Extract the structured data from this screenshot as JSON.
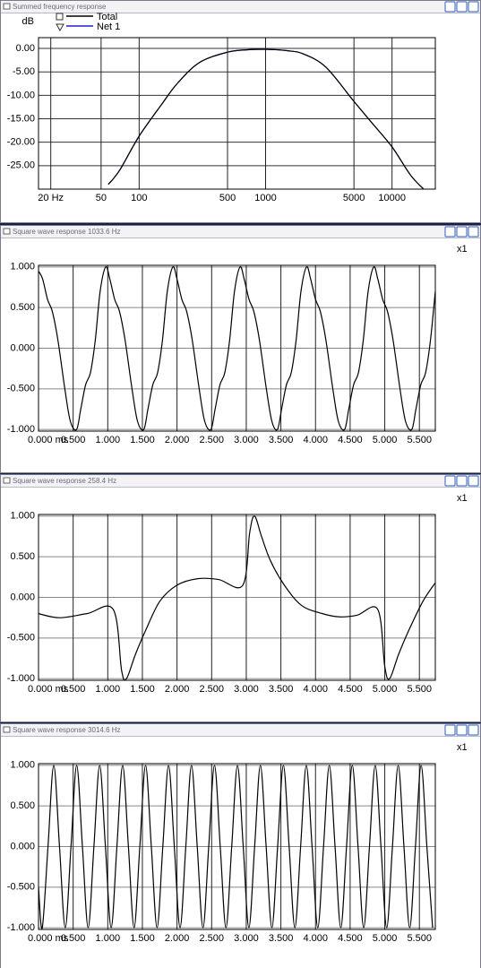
{
  "chart_data": [
    {
      "type": "line",
      "title": "Summed frequency response",
      "y_label": "dB",
      "xlog": true,
      "x": [
        57,
        70,
        100,
        150,
        200,
        300,
        500,
        700,
        1000,
        1500,
        2000,
        3000,
        5000,
        7000,
        10000,
        14000,
        17800
      ],
      "series": [
        {
          "name": "Net 1",
          "color": "#2020c0",
          "values": [
            -29,
            -26,
            -18.7,
            -12,
            -7.5,
            -3,
            -0.8,
            -0.3,
            -0.2,
            -0.5,
            -1.2,
            -4,
            -11.3,
            -16,
            -21,
            -27,
            -30
          ]
        },
        {
          "name": "Total",
          "color": "#000000",
          "values": [
            -29,
            -26,
            -18.7,
            -12,
            -7.5,
            -3,
            -0.8,
            -0.3,
            -0.2,
            -0.5,
            -1.2,
            -4,
            -11.3,
            -16,
            -21,
            -27,
            -30
          ]
        }
      ],
      "xlim": [
        16,
        22000
      ],
      "ylim": [
        -30,
        2.3
      ],
      "xticks": [
        {
          "value": 20,
          "label": "20 Hz"
        },
        50,
        100,
        500,
        1000,
        5000,
        10000
      ],
      "yticks": [
        {
          "value": 0,
          "label": "0.00"
        },
        {
          "value": -5,
          "label": "-5.00"
        },
        {
          "value": -10,
          "label": "-10.00"
        },
        {
          "value": -15,
          "label": "-15.00"
        },
        {
          "value": -20,
          "label": "-20.00"
        },
        {
          "value": -25,
          "label": "-25.00"
        }
      ]
    },
    {
      "type": "line",
      "title": "Square wave response 1033.6 Hz",
      "annotation": "x1",
      "x": [
        0,
        0.06,
        0.13,
        0.2,
        0.28,
        0.38,
        0.46,
        0.55,
        0.61,
        0.68,
        0.75,
        0.82,
        0.89,
        0.97,
        1.03,
        1.1,
        1.17,
        1.25,
        1.35,
        1.43,
        1.52,
        1.58,
        1.65,
        1.72,
        1.79,
        1.86,
        1.94,
        2.0,
        2.07,
        2.14,
        2.22,
        2.32,
        2.4,
        2.49,
        2.55,
        2.62,
        2.69,
        2.76,
        2.83,
        2.91,
        2.97,
        3.04,
        3.11,
        3.19,
        3.29,
        3.37,
        3.45,
        3.51,
        3.58,
        3.65,
        3.72,
        3.79,
        3.87,
        3.93,
        4.0,
        4.07,
        4.15,
        4.25,
        4.33,
        4.42,
        4.48,
        4.55,
        4.62,
        4.69,
        4.76,
        4.84,
        4.9,
        4.97,
        5.04,
        5.12,
        5.22,
        5.3,
        5.39,
        5.45,
        5.52,
        5.59,
        5.66,
        5.73
      ],
      "series": [
        {
          "color": "#000000",
          "values": [
            0.95,
            0.85,
            0.6,
            0.45,
            0.1,
            -0.5,
            -0.9,
            -1,
            -0.75,
            -0.45,
            -0.3,
            0.1,
            0.7,
            1,
            0.85,
            0.6,
            0.45,
            0.1,
            -0.5,
            -0.9,
            -1,
            -0.75,
            -0.45,
            -0.3,
            0.1,
            0.7,
            1,
            0.85,
            0.6,
            0.45,
            0.1,
            -0.5,
            -0.9,
            -1,
            -0.75,
            -0.45,
            -0.3,
            0.1,
            0.7,
            1,
            0.85,
            0.6,
            0.45,
            0.1,
            -0.5,
            -0.9,
            -1,
            -0.75,
            -0.45,
            -0.3,
            0.1,
            0.7,
            1,
            0.85,
            0.6,
            0.45,
            0.1,
            -0.5,
            -0.9,
            -1,
            -0.75,
            -0.45,
            -0.3,
            0.1,
            0.7,
            1,
            0.85,
            0.6,
            0.45,
            0.1,
            -0.5,
            -0.9,
            -1,
            -0.75,
            -0.45,
            -0.3,
            0.1,
            0.7
          ]
        }
      ],
      "xlim": [
        0,
        5.73
      ],
      "ylim": [
        -1.02,
        1.02
      ],
      "xticks": [
        {
          "value": 0,
          "label": "0.000 ms"
        },
        {
          "value": 0.5,
          "label": "0.500"
        },
        {
          "value": 1,
          "label": "1.000"
        },
        {
          "value": 1.5,
          "label": "1.500"
        },
        {
          "value": 2,
          "label": "2.000"
        },
        {
          "value": 2.5,
          "label": "2.500"
        },
        {
          "value": 3,
          "label": "3.000"
        },
        {
          "value": 3.5,
          "label": "3.500"
        },
        {
          "value": 4,
          "label": "4.000"
        },
        {
          "value": 4.5,
          "label": "4.500"
        },
        {
          "value": 5,
          "label": "5.000"
        },
        {
          "value": 5.5,
          "label": "5.500"
        }
      ],
      "yticks": [
        {
          "value": 1,
          "label": "1.000"
        },
        {
          "value": 0.5,
          "label": "0.500"
        },
        {
          "value": 0,
          "label": "0.000"
        },
        {
          "value": -0.5,
          "label": "-0.500"
        },
        {
          "value": -1,
          "label": "-1.000"
        }
      ]
    },
    {
      "type": "line",
      "title": "Square wave response 258.4 Hz",
      "annotation": "x1",
      "x": [
        0,
        0.3,
        0.7,
        1.08,
        1.2,
        1.27,
        1.4,
        1.55,
        1.75,
        2.0,
        2.3,
        2.6,
        2.95,
        3.05,
        3.12,
        3.22,
        3.35,
        3.55,
        3.8,
        4.1,
        4.35,
        4.6,
        4.9,
        5.0,
        5.07,
        5.2,
        5.35,
        5.55,
        5.73
      ],
      "series": [
        {
          "color": "#000000",
          "values": [
            -0.2,
            -0.25,
            -0.2,
            -0.15,
            -0.9,
            -1,
            -0.7,
            -0.4,
            -0.05,
            0.15,
            0.23,
            0.22,
            0.15,
            0.8,
            1,
            0.75,
            0.45,
            0.15,
            -0.1,
            -0.2,
            -0.24,
            -0.22,
            -0.15,
            -0.85,
            -1,
            -0.7,
            -0.4,
            -0.05,
            0.18
          ]
        }
      ],
      "xlim": [
        0,
        5.73
      ],
      "ylim": [
        -1.02,
        1.02
      ],
      "xticks": [
        {
          "value": 0,
          "label": "0.000 ms"
        },
        {
          "value": 0.5,
          "label": "0.500"
        },
        {
          "value": 1,
          "label": "1.000"
        },
        {
          "value": 1.5,
          "label": "1.500"
        },
        {
          "value": 2,
          "label": "2.000"
        },
        {
          "value": 2.5,
          "label": "2.500"
        },
        {
          "value": 3,
          "label": "3.000"
        },
        {
          "value": 3.5,
          "label": "3.500"
        },
        {
          "value": 4,
          "label": "4.000"
        },
        {
          "value": 4.5,
          "label": "4.500"
        },
        {
          "value": 5,
          "label": "5.000"
        },
        {
          "value": 5.5,
          "label": "5.500"
        }
      ],
      "yticks": [
        {
          "value": 1,
          "label": "1.000"
        },
        {
          "value": 0.5,
          "label": "0.500"
        },
        {
          "value": 0,
          "label": "0.000"
        },
        {
          "value": -0.5,
          "label": "-0.500"
        },
        {
          "value": -1,
          "label": "-1.000"
        }
      ]
    },
    {
      "type": "line",
      "title": "Square wave response 3014.6 Hz",
      "annotation": "x1",
      "x": [
        0,
        0.054,
        0.137,
        0.22,
        0.303,
        0.386,
        0.469,
        0.551,
        0.634,
        0.717,
        0.8,
        0.883,
        0.966,
        1.049,
        1.132,
        1.215,
        1.298,
        1.38,
        1.463,
        1.546,
        1.629,
        1.712,
        1.795,
        1.878,
        1.961,
        2.044,
        2.127,
        2.209,
        2.292,
        2.375,
        2.458,
        2.541,
        2.624,
        2.707,
        2.79,
        2.873,
        2.956,
        3.038,
        3.121,
        3.204,
        3.287,
        3.37,
        3.453,
        3.536,
        3.619,
        3.702,
        3.785,
        3.867,
        3.95,
        4.033,
        4.116,
        4.199,
        4.282,
        4.365,
        4.448,
        4.531,
        4.614,
        4.696,
        4.779,
        4.862,
        4.945,
        5.028,
        5.111,
        5.194,
        5.277,
        5.36,
        5.443,
        5.525,
        5.608,
        5.691
      ],
      "series": [
        {
          "color": "#000000",
          "values": [
            -0.5,
            -1,
            0,
            1,
            0,
            -1,
            0,
            1,
            0,
            -1,
            0,
            1,
            0,
            -1,
            0,
            1,
            0,
            -1,
            0,
            1,
            0,
            -1,
            0,
            1,
            0,
            -1,
            0,
            1,
            0,
            -1,
            0,
            1,
            0,
            -1,
            0,
            1,
            0,
            -1,
            0,
            1,
            0,
            -1,
            0,
            1,
            0,
            -1,
            0,
            1,
            0,
            -1,
            0,
            1,
            0,
            -1,
            0,
            1,
            0,
            -1,
            0,
            1,
            0,
            -1,
            0,
            1,
            0,
            -1,
            0,
            1,
            0,
            -1
          ]
        }
      ],
      "xlim": [
        0,
        5.73
      ],
      "ylim": [
        -1.02,
        1.02
      ],
      "xticks": [
        {
          "value": 0,
          "label": "0.000 ms"
        },
        {
          "value": 0.5,
          "label": "0.500"
        },
        {
          "value": 1,
          "label": "1.000"
        },
        {
          "value": 1.5,
          "label": "1.500"
        },
        {
          "value": 2,
          "label": "2.000"
        },
        {
          "value": 2.5,
          "label": "2.500"
        },
        {
          "value": 3,
          "label": "3.000"
        },
        {
          "value": 3.5,
          "label": "3.500"
        },
        {
          "value": 4,
          "label": "4.000"
        },
        {
          "value": 4.5,
          "label": "4.500"
        },
        {
          "value": 5,
          "label": "5.000"
        },
        {
          "value": 5.5,
          "label": "5.500"
        }
      ],
      "yticks": [
        {
          "value": 1,
          "label": "1.000"
        },
        {
          "value": 0.5,
          "label": "0.500"
        },
        {
          "value": 0,
          "label": "0.000"
        },
        {
          "value": -0.5,
          "label": "-0.500"
        },
        {
          "value": -1,
          "label": "-1.000"
        }
      ]
    }
  ]
}
